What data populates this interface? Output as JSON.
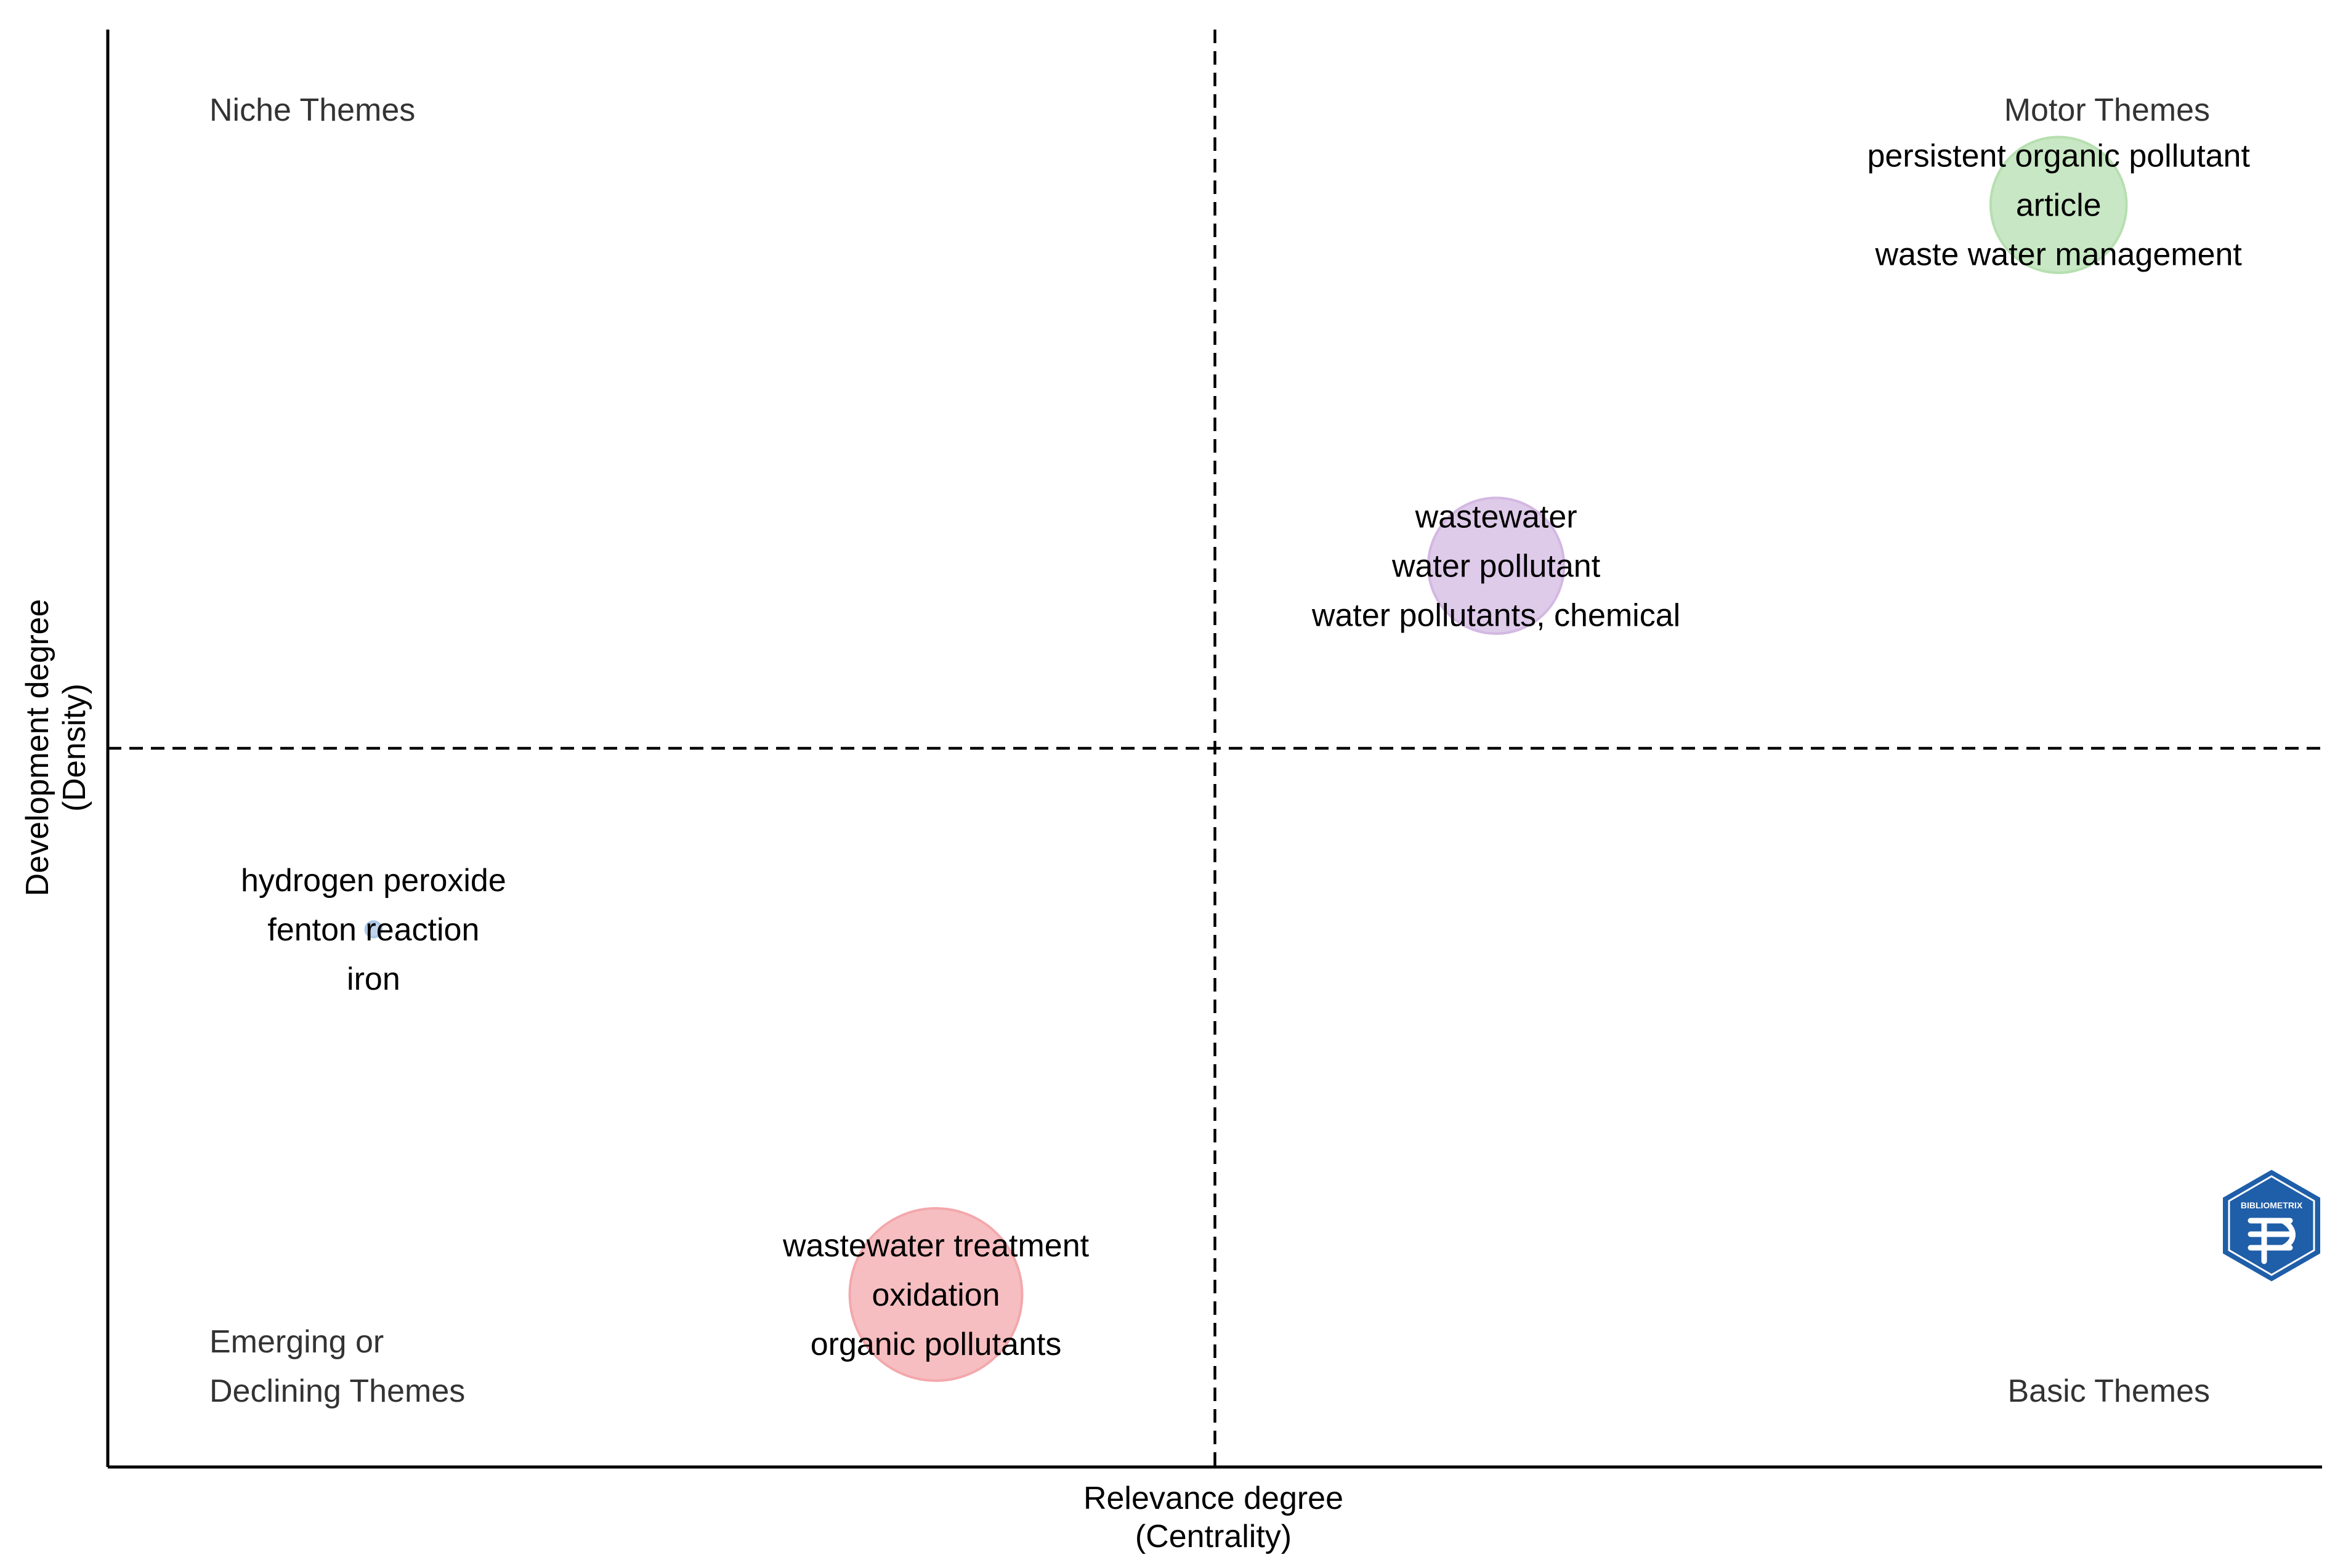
{
  "chart_data": {
    "type": "scatter",
    "title": "",
    "xlabel": [
      "Relevance degree",
      "(Centrality)"
    ],
    "ylabel": [
      "Development degree",
      "(Density)"
    ],
    "xlim": [
      0,
      1
    ],
    "ylim": [
      0,
      1
    ],
    "x_divider": 0.5,
    "y_divider": 0.5,
    "grid": false,
    "legend": "none",
    "quadrants": {
      "top_left": [
        "Niche Themes"
      ],
      "top_right": [
        "Motor Themes"
      ],
      "bottom_left": [
        "Emerging or",
        "Declining Themes"
      ],
      "bottom_right": [
        "Basic Themes"
      ]
    },
    "clusters": [
      {
        "x": 0.881,
        "y": 0.878,
        "size": 0.52,
        "color": "#b6dfb0",
        "labels": [
          "persistent organic pollutant",
          "article",
          "waste water management"
        ]
      },
      {
        "x": 0.627,
        "y": 0.627,
        "size": 0.52,
        "color": "#d3b8e2",
        "labels": [
          "wastewater",
          "water pollutant",
          "water pollutants, chemical"
        ]
      },
      {
        "x": 0.12,
        "y": 0.374,
        "size": 0.06,
        "color": "#aac6e6",
        "labels": [
          "hydrogen peroxide",
          "fenton reaction",
          "iron"
        ]
      },
      {
        "x": 0.374,
        "y": 0.12,
        "size": 0.66,
        "color": "#f3a8ac",
        "labels": [
          "wastewater treatment",
          "oxidation",
          "organic pollutants"
        ]
      }
    ],
    "logo": {
      "text": "BIBLIOMETRIX",
      "color": "#1f5ea8"
    }
  }
}
